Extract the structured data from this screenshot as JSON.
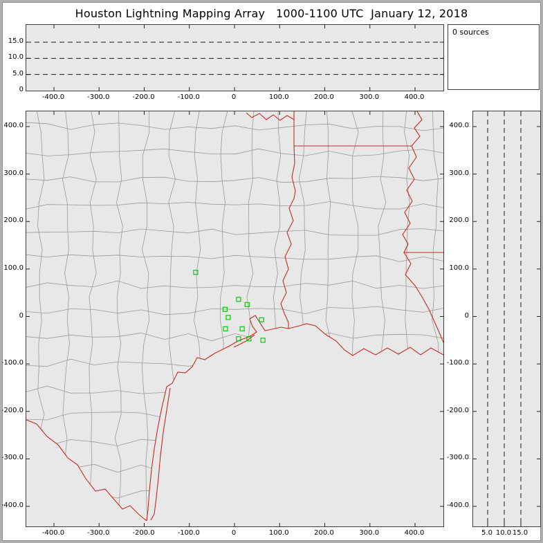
{
  "title": "Houston Lightning Mapping Array   1000-1100 UTC  January 12, 2018",
  "sources_panel": {
    "label": "0 sources"
  },
  "colors": {
    "window_bg": "#ffffff",
    "plot_bg": "#e8e8e8",
    "county_lines": "#999999",
    "state_lines": "#c52a21",
    "station_marker": "#00cc00",
    "dashed_lines": "#1a1a1a",
    "frame": "#3c3c3c"
  },
  "top_panel": {
    "x_tick_labels": [
      "-400.0",
      "-300.0",
      "-200.0",
      "-100.0",
      "0",
      "100.0",
      "200.0",
      "300.0",
      "400.0"
    ],
    "x_tick_values": [
      -400,
      -300,
      -200,
      -100,
      0,
      100,
      200,
      300,
      400
    ],
    "alt_tick_labels": [
      "15.0",
      "10.0",
      "5.0",
      "0"
    ],
    "alt_tick_values": [
      15,
      10,
      5,
      0
    ],
    "dashed_altitudes_km": [
      5,
      10,
      15
    ]
  },
  "map_panel": {
    "x_tick_labels": [
      "-400.0",
      "-300.0",
      "-200.0",
      "-100.0",
      "0",
      "100.0",
      "200.0",
      "300.0",
      "400.0"
    ],
    "x_tick_values": [
      -400,
      -300,
      -200,
      -100,
      0,
      100,
      200,
      300,
      400
    ],
    "y_tick_labels": [
      "400.0",
      "300.0",
      "200.0",
      "100.0",
      "0",
      "-100.0",
      "-200.0",
      "-300.0",
      "-400.0"
    ],
    "y_tick_values": [
      400,
      300,
      200,
      100,
      0,
      -100,
      -200,
      -300,
      -400
    ],
    "stations_km": [
      [
        -86,
        93
      ],
      [
        9,
        36
      ],
      [
        28,
        25
      ],
      [
        -21,
        15
      ],
      [
        -14,
        -2
      ],
      [
        -20,
        -26
      ],
      [
        17,
        -26
      ],
      [
        9,
        -47
      ],
      [
        32,
        -47
      ],
      [
        60,
        -7
      ],
      [
        63,
        -50
      ]
    ]
  },
  "right_panel": {
    "alt_tick_labels": [
      "5.0",
      "10.0",
      "15.0"
    ],
    "alt_tick_values": [
      5,
      10,
      15
    ],
    "y_tick_labels": [
      "400.0",
      "300.0",
      "200.0",
      "100.0",
      "0",
      "-100.0",
      "-200.0",
      "-300.0",
      "-400.0"
    ],
    "y_tick_values": [
      400,
      300,
      200,
      100,
      0,
      -100,
      -200,
      -300,
      -400
    ],
    "dashed_altitudes_km": [
      5,
      10,
      15
    ]
  },
  "chart_data": [
    {
      "type": "scatter",
      "name": "altitude-vs-east-west-distance",
      "title": "Houston Lightning Mapping Array   1000-1100 UTC  January 12, 2018",
      "xlabel": "",
      "ylabel": "",
      "xlim": [
        -460,
        460
      ],
      "ylim": [
        0,
        20
      ],
      "x_ticks": [
        -400,
        -300,
        -200,
        -100,
        0,
        100,
        200,
        300,
        400
      ],
      "y_ticks": [
        0,
        5,
        10,
        15
      ],
      "dashed_gridlines_y": [
        5,
        10,
        15
      ],
      "series": [
        {
          "name": "lightning-sources",
          "count": 0,
          "points": []
        }
      ]
    },
    {
      "type": "scatter",
      "name": "plan-view-map",
      "xlabel": "",
      "ylabel": "",
      "xlim": [
        -460,
        460
      ],
      "ylim": [
        -440,
        435
      ],
      "x_ticks": [
        -400,
        -300,
        -200,
        -100,
        0,
        100,
        200,
        300,
        400
      ],
      "y_ticks": [
        400,
        300,
        200,
        100,
        0,
        -100,
        -200,
        -300,
        -400
      ],
      "layers": [
        "county-boundaries (gray lines)",
        "state-borders-coastline-rivers (red lines)"
      ],
      "series": [
        {
          "name": "lma-stations",
          "marker": "open-square",
          "color": "#00cc00",
          "points": [
            [
              -86,
              93
            ],
            [
              9,
              36
            ],
            [
              28,
              25
            ],
            [
              -21,
              15
            ],
            [
              -14,
              -2
            ],
            [
              -20,
              -26
            ],
            [
              17,
              -26
            ],
            [
              9,
              -47
            ],
            [
              32,
              -47
            ],
            [
              60,
              -7
            ],
            [
              63,
              -50
            ]
          ]
        },
        {
          "name": "lightning-sources",
          "count": 0,
          "points": []
        }
      ]
    },
    {
      "type": "scatter",
      "name": "altitude-vs-north-south-distance",
      "xlabel": "",
      "ylabel": "",
      "xlim": [
        0,
        20
      ],
      "ylim": [
        -440,
        435
      ],
      "x_ticks": [
        5,
        10,
        15
      ],
      "y_ticks": [
        400,
        300,
        200,
        100,
        0,
        -100,
        -200,
        -300,
        -400
      ],
      "dashed_gridlines_x": [
        5,
        10,
        15
      ],
      "series": [
        {
          "name": "lightning-sources",
          "count": 0,
          "points": []
        }
      ]
    }
  ]
}
